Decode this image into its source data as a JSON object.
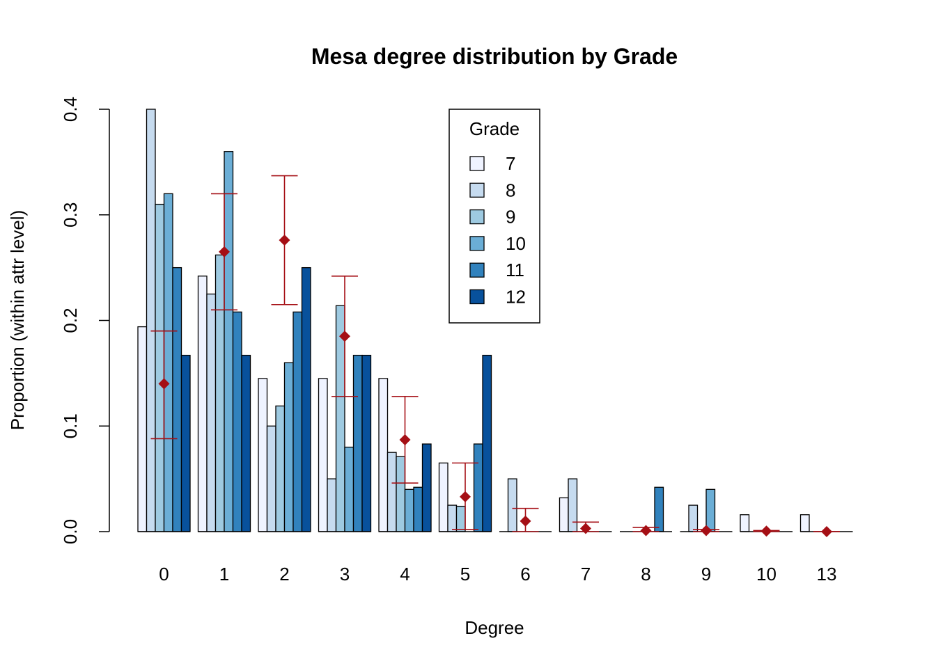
{
  "chart_data": {
    "type": "bar",
    "title": "Mesa degree distribution by Grade",
    "xlabel": "Degree",
    "ylabel": "Proportion (within attr level)",
    "ylim": [
      0,
      0.4
    ],
    "yticks": [
      "0.0",
      "0.1",
      "0.2",
      "0.3",
      "0.4"
    ],
    "categories": [
      "0",
      "1",
      "2",
      "3",
      "4",
      "5",
      "6",
      "7",
      "8",
      "9",
      "10",
      "13"
    ],
    "legend": {
      "title": "Grade",
      "position": "top-center"
    },
    "series": [
      {
        "name": "7",
        "color": "#eff3ff",
        "values": [
          0.194,
          0.242,
          0.145,
          0.145,
          0.145,
          0.065,
          0.0,
          0.032,
          0.0,
          0.0,
          0.016,
          0.016
        ]
      },
      {
        "name": "8",
        "color": "#c6dbef",
        "values": [
          0.4,
          0.225,
          0.1,
          0.05,
          0.075,
          0.025,
          0.05,
          0.05,
          0.0,
          0.025,
          0.0,
          0.0
        ]
      },
      {
        "name": "9",
        "color": "#9ecae1",
        "values": [
          0.31,
          0.262,
          0.119,
          0.214,
          0.071,
          0.024,
          0.0,
          0.0,
          0.0,
          0.0,
          0.0,
          0.0
        ]
      },
      {
        "name": "10",
        "color": "#6baed6",
        "values": [
          0.32,
          0.36,
          0.16,
          0.08,
          0.04,
          0.0,
          0.0,
          0.0,
          0.0,
          0.04,
          0.0,
          0.0
        ]
      },
      {
        "name": "11",
        "color": "#3182bd",
        "values": [
          0.25,
          0.208,
          0.208,
          0.167,
          0.042,
          0.083,
          0.0,
          0.0,
          0.042,
          0.0,
          0.0,
          0.0
        ]
      },
      {
        "name": "12",
        "color": "#08519c",
        "values": [
          0.167,
          0.167,
          0.25,
          0.167,
          0.083,
          0.167,
          0.0,
          0.0,
          0.0,
          0.0,
          0.0,
          0.0
        ]
      }
    ],
    "expected": {
      "color": "#a50f15",
      "mean": [
        0.14,
        0.265,
        0.276,
        0.185,
        0.087,
        0.033,
        0.01,
        0.003,
        0.001,
        0.001,
        0.0005,
        0.0
      ],
      "lower": [
        0.088,
        0.21,
        0.215,
        0.128,
        0.046,
        0.002,
        0.0,
        0.0,
        0.0,
        0.0,
        0.0,
        0.0
      ],
      "upper": [
        0.19,
        0.32,
        0.337,
        0.242,
        0.128,
        0.065,
        0.022,
        0.009,
        0.004,
        0.002,
        0.001,
        0.0
      ]
    }
  }
}
